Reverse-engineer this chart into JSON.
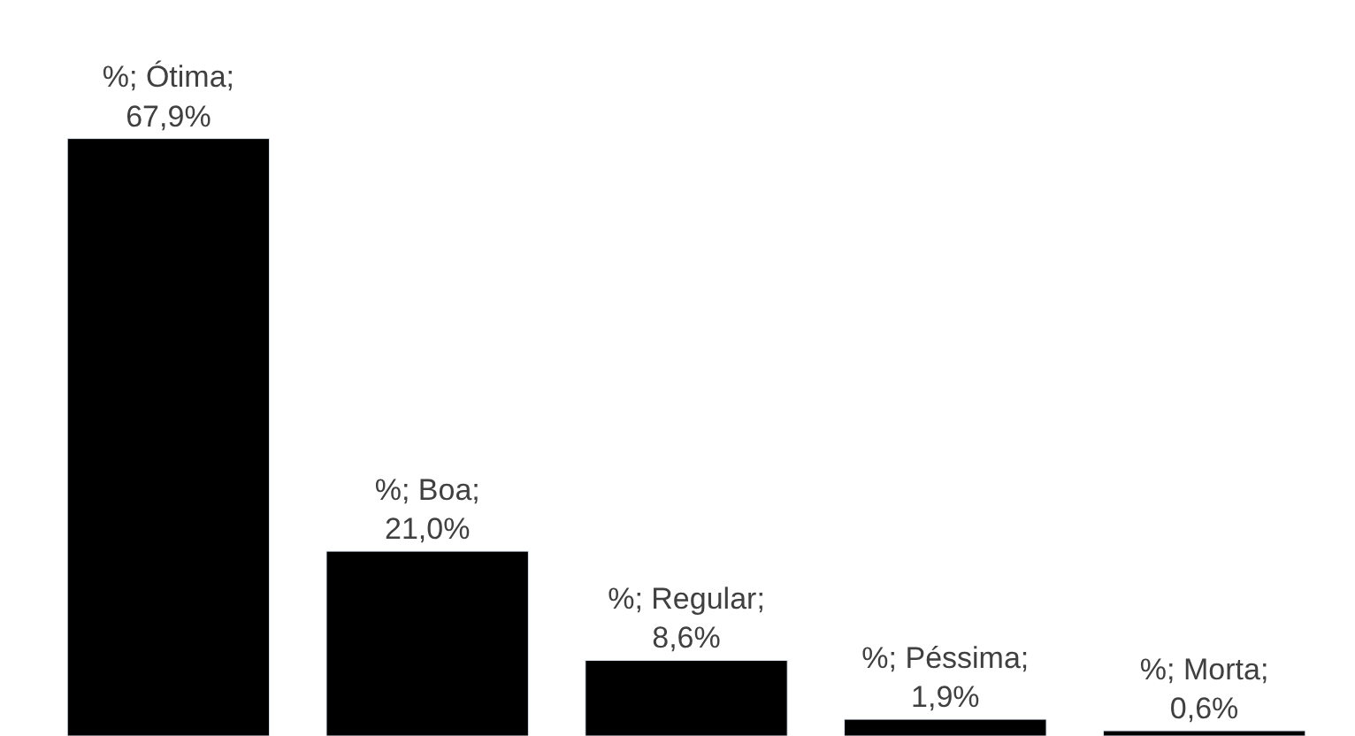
{
  "chart_data": {
    "type": "bar",
    "categories": [
      null,
      null,
      null,
      null,
      null
    ],
    "series": [
      {
        "color": "#000000",
        "values": [
          67.9,
          21.0,
          8.6,
          1.9,
          0.6
        ],
        "value_labels": [
          "%; Ótima; 67,9%",
          "%; Boa; 21,0%",
          "%; Regular; 8,6%",
          "%; Péssima; 1,9%",
          "%; Morta; 0,6%"
        ]
      }
    ],
    "tick_labels": false
  }
}
